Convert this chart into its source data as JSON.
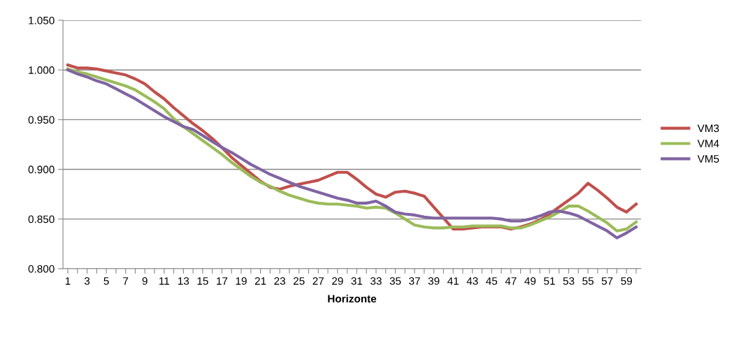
{
  "chart_data": {
    "type": "line",
    "xlabel": "Horizonte",
    "categories": [
      "1",
      null,
      "3",
      null,
      "5",
      null,
      "7",
      null,
      "9",
      null,
      "11",
      null,
      "13",
      null,
      "15",
      null,
      "17",
      null,
      "19",
      null,
      "21",
      null,
      "23",
      null,
      "25",
      null,
      "27",
      null,
      "29",
      null,
      "31",
      null,
      "33",
      null,
      "35",
      null,
      "37",
      null,
      "39",
      null,
      "41",
      null,
      "43",
      null,
      "45",
      null,
      "47",
      null,
      "49",
      null,
      "51",
      null,
      "53",
      null,
      "55",
      null,
      "57",
      null,
      "59",
      null
    ],
    "series": [
      {
        "name": "VM3",
        "color": "#c0504d",
        "values": [
          1.005,
          1.002,
          1.002,
          1.001,
          0.999,
          0.997,
          0.995,
          0.991,
          0.986,
          0.978,
          0.971,
          0.962,
          0.954,
          0.946,
          0.939,
          0.931,
          0.922,
          0.912,
          0.904,
          0.896,
          0.888,
          0.882,
          0.88,
          0.883,
          0.885,
          0.887,
          0.889,
          0.893,
          0.897,
          0.897,
          0.89,
          0.882,
          0.875,
          0.872,
          0.877,
          0.878,
          0.876,
          0.873,
          0.862,
          0.851,
          0.84,
          0.84,
          0.841,
          0.842,
          0.842,
          0.842,
          0.84,
          0.842,
          0.845,
          0.849,
          0.855,
          0.862,
          0.869,
          0.876,
          0.886,
          0.879,
          0.871,
          0.862,
          0.857,
          0.865
        ]
      },
      {
        "name": "VM4",
        "color": "#9bbb59",
        "values": [
          1.001,
          0.998,
          0.996,
          0.993,
          0.99,
          0.987,
          0.984,
          0.98,
          0.974,
          0.968,
          0.961,
          0.951,
          0.943,
          0.936,
          0.929,
          0.922,
          0.915,
          0.907,
          0.9,
          0.893,
          0.887,
          0.883,
          0.878,
          0.874,
          0.871,
          0.868,
          0.866,
          0.865,
          0.865,
          0.864,
          0.863,
          0.861,
          0.862,
          0.861,
          0.856,
          0.85,
          0.844,
          0.842,
          0.841,
          0.841,
          0.842,
          0.842,
          0.843,
          0.843,
          0.843,
          0.843,
          0.841,
          0.841,
          0.844,
          0.848,
          0.852,
          0.857,
          0.863,
          0.863,
          0.858,
          0.852,
          0.846,
          0.838,
          0.84,
          0.847
        ]
      },
      {
        "name": "VM5",
        "color": "#8064a2",
        "values": [
          1.0,
          0.996,
          0.993,
          0.989,
          0.986,
          0.981,
          0.976,
          0.971,
          0.965,
          0.959,
          0.953,
          0.948,
          0.943,
          0.94,
          0.934,
          0.928,
          0.922,
          0.917,
          0.911,
          0.905,
          0.9,
          0.895,
          0.891,
          0.887,
          0.883,
          0.88,
          0.877,
          0.874,
          0.871,
          0.869,
          0.866,
          0.866,
          0.868,
          0.863,
          0.857,
          0.855,
          0.854,
          0.852,
          0.851,
          0.851,
          0.851,
          0.851,
          0.851,
          0.851,
          0.851,
          0.85,
          0.848,
          0.848,
          0.85,
          0.853,
          0.857,
          0.858,
          0.856,
          0.853,
          0.848,
          0.843,
          0.838,
          0.831,
          0.836,
          0.842
        ]
      }
    ],
    "ylim": [
      0.8,
      1.05
    ],
    "yticks": [
      {
        "value": 0.8,
        "label": "0.800"
      },
      {
        "value": 0.85,
        "label": "0.850"
      },
      {
        "value": 0.9,
        "label": "0.900"
      },
      {
        "value": 0.95,
        "label": "0.950"
      },
      {
        "value": 1.0,
        "label": "1.000"
      },
      {
        "value": 1.05,
        "label": "1.050"
      }
    ],
    "grid": "y",
    "legend": "right",
    "marker": "none",
    "line_style": "solid"
  }
}
